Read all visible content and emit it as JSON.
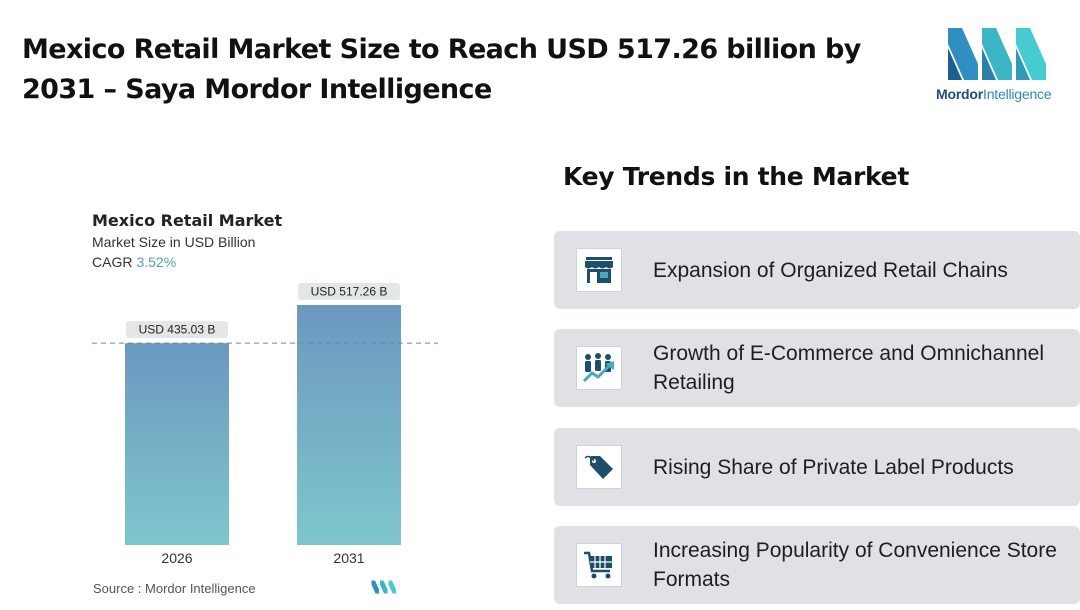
{
  "headline": "Mexico Retail Market Size to Reach USD 517.26 billion by 2031 – Saya Mordor Intelligence",
  "logo": {
    "brand_bold": "Mordor",
    "brand_light": "Intelligence"
  },
  "chart_data": {
    "type": "bar",
    "title": "Mexico Retail Market",
    "subtitle": "Market Size in USD Billion",
    "cagr_label": "CAGR",
    "cagr_value": "3.52%",
    "categories": [
      "2026",
      "2031"
    ],
    "values": [
      435.03,
      517.26
    ],
    "data_labels": [
      "USD 435.03 B",
      "USD 517.26 B"
    ],
    "reference_line": 435.03,
    "ylim": [
      0,
      550
    ],
    "grid": false,
    "legend": "none",
    "bar_gradient": [
      "#6b98bf",
      "#7fc6cc"
    ]
  },
  "source": "Source :  Mordor Intelligence",
  "trends": {
    "title": "Key Trends in the Market",
    "items": [
      {
        "text": "Expansion of Organized Retail Chains",
        "icon": "storefront-icon"
      },
      {
        "text": "Growth of E-Commerce and Omnichannel Retailing",
        "icon": "people-growth-icon"
      },
      {
        "text": "Rising Share of Private Label Products",
        "icon": "price-tag-icon"
      },
      {
        "text": "Increasing Popularity of Convenience Store Formats",
        "icon": "shopping-cart-icon"
      }
    ]
  },
  "colors": {
    "icon_dark": "#1d4f6b",
    "icon_teal": "#4aa7c0",
    "card_bg": "#dfe1e4",
    "accent": "#4fa3b8"
  }
}
